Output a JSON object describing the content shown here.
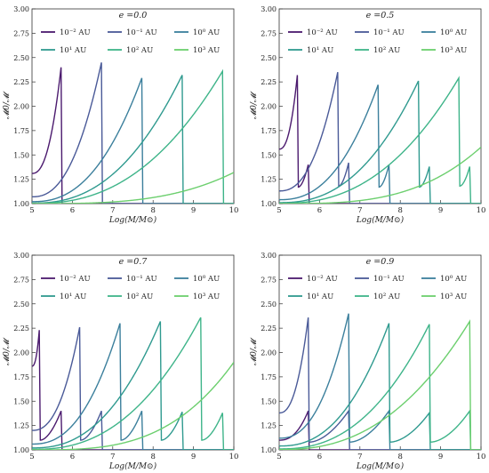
{
  "chart_data": [
    {
      "type": "line",
      "panel": "top-left",
      "title": "e =0.0",
      "xlabel": "Log(M/M⊙)",
      "ylabel": "𝓜0/𝓜",
      "xlim": [
        5,
        10
      ],
      "ylim": [
        1.0,
        3.0
      ],
      "xticks": [
        "5",
        "6",
        "7",
        "8",
        "9",
        "10"
      ],
      "yticks": [
        "1.00",
        "1.25",
        "1.50",
        "1.75",
        "2.00",
        "2.25",
        "2.50",
        "2.75",
        "3.00"
      ],
      "legend": "top-center",
      "series": [
        {
          "name": "10⁻² AU",
          "color": "#4b1a6e",
          "peaks": [
            [
              5.72,
              2.4
            ]
          ],
          "dips": [],
          "start": 1.31
        },
        {
          "name": "10⁻¹ AU",
          "color": "#4a5a98",
          "peaks": [
            [
              6.72,
              2.45
            ]
          ],
          "dips": [],
          "start": 1.07
        },
        {
          "name": "10⁰ AU",
          "color": "#3b7f9c",
          "peaks": [
            [
              7.72,
              2.29
            ]
          ],
          "dips": [],
          "start": 1.02
        },
        {
          "name": "10¹ AU",
          "color": "#2f9a8f",
          "peaks": [
            [
              8.72,
              2.32
            ]
          ],
          "dips": [],
          "start": 1.005
        },
        {
          "name": "10² AU",
          "color": "#3eb489",
          "peaks": [
            [
              9.72,
              2.36
            ]
          ],
          "dips": [],
          "start": 1.001
        },
        {
          "name": "10³ AU",
          "color": "#6ccf6e",
          "peaks": [],
          "dips": [],
          "start": 1.0,
          "end": 1.32
        }
      ]
    },
    {
      "type": "line",
      "panel": "top-right",
      "title": "e =0.5",
      "xlabel": "Log(M/M⊙)",
      "ylabel": "𝓜0/𝓜",
      "xlim": [
        5,
        10
      ],
      "ylim": [
        1.0,
        3.0
      ],
      "xticks": [
        "5",
        "6",
        "7",
        "8",
        "9",
        "10"
      ],
      "yticks": [
        "1.00",
        "1.25",
        "1.50",
        "1.75",
        "2.00",
        "2.25",
        "2.50",
        "2.75",
        "3.00"
      ],
      "legend": "top-center",
      "series": [
        {
          "name": "10⁻² AU",
          "color": "#4b1a6e",
          "peaks": [
            [
              5.45,
              2.32
            ],
            [
              5.72,
              1.4
            ]
          ],
          "dips": [
            1.17
          ],
          "start": 1.56
        },
        {
          "name": "10⁻¹ AU",
          "color": "#4a5a98",
          "peaks": [
            [
              6.45,
              2.35
            ],
            [
              6.72,
              1.42
            ]
          ],
          "dips": [
            1.18
          ],
          "start": 1.13
        },
        {
          "name": "10⁰ AU",
          "color": "#3b7f9c",
          "peaks": [
            [
              7.45,
              2.22
            ],
            [
              7.72,
              1.4
            ]
          ],
          "dips": [
            1.17
          ],
          "start": 1.04
        },
        {
          "name": "10¹ AU",
          "color": "#2f9a8f",
          "peaks": [
            [
              8.45,
              2.26
            ],
            [
              8.72,
              1.38
            ]
          ],
          "dips": [
            1.17
          ],
          "start": 1.01
        },
        {
          "name": "10² AU",
          "color": "#3eb489",
          "peaks": [
            [
              9.45,
              2.29
            ],
            [
              9.72,
              1.38
            ]
          ],
          "dips": [
            1.18
          ],
          "start": 1.002
        },
        {
          "name": "10³ AU",
          "color": "#6ccf6e",
          "peaks": [],
          "dips": [],
          "start": 1.0,
          "end": 1.58
        }
      ]
    },
    {
      "type": "line",
      "panel": "bottom-left",
      "title": "e =0.7",
      "xlabel": "Log(M/M⊙)",
      "ylabel": "𝓜0/𝓜",
      "xlim": [
        5,
        10
      ],
      "ylim": [
        1.0,
        3.0
      ],
      "xticks": [
        "5",
        "6",
        "7",
        "8",
        "9",
        "10"
      ],
      "yticks": [
        "1.00",
        "1.25",
        "1.50",
        "1.75",
        "2.00",
        "2.25",
        "2.50",
        "2.75",
        "3.00"
      ],
      "legend": "top-center",
      "series": [
        {
          "name": "10⁻² AU",
          "color": "#4b1a6e",
          "peaks": [
            [
              5.18,
              2.23
            ],
            [
              5.72,
              1.4
            ]
          ],
          "dips": [
            1.1
          ],
          "start": 1.86
        },
        {
          "name": "10⁻¹ AU",
          "color": "#4a5a98",
          "peaks": [
            [
              6.18,
              2.26
            ],
            [
              6.72,
              1.4
            ]
          ],
          "dips": [
            1.1
          ],
          "start": 1.2
        },
        {
          "name": "10⁰ AU",
          "color": "#3b7f9c",
          "peaks": [
            [
              7.18,
              2.3
            ],
            [
              7.72,
              1.4
            ]
          ],
          "dips": [
            1.1
          ],
          "start": 1.06
        },
        {
          "name": "10¹ AU",
          "color": "#2f9a8f",
          "peaks": [
            [
              8.18,
              2.32
            ],
            [
              8.72,
              1.39
            ]
          ],
          "dips": [
            1.1
          ],
          "start": 1.02
        },
        {
          "name": "10² AU",
          "color": "#3eb489",
          "peaks": [
            [
              9.18,
              2.36
            ],
            [
              9.72,
              1.38
            ]
          ],
          "dips": [
            1.1
          ],
          "start": 1.005
        },
        {
          "name": "10³ AU",
          "color": "#6ccf6e",
          "peaks": [],
          "dips": [],
          "start": 1.0,
          "end": 1.9
        }
      ]
    },
    {
      "type": "line",
      "panel": "bottom-right",
      "title": "e =0.9",
      "xlabel": "Log(M/M⊙)",
      "ylabel": "𝓜0/𝓜",
      "xlim": [
        5,
        10
      ],
      "ylim": [
        1.0,
        3.0
      ],
      "xticks": [
        "5",
        "6",
        "7",
        "8",
        "9",
        "10"
      ],
      "yticks": [
        "1.00",
        "1.25",
        "1.50",
        "1.75",
        "2.00",
        "2.25",
        "2.50",
        "2.75",
        "3.00"
      ],
      "legend": "top-center",
      "series": [
        {
          "name": "10⁻² AU",
          "color": "#4b1a6e",
          "peaks": [
            [
              5.72,
              1.4
            ]
          ],
          "dips": [],
          "start": 1.1
        },
        {
          "name": "10⁻¹ AU",
          "color": "#4a5a98",
          "peaks": [
            [
              5.72,
              2.36
            ],
            [
              6.72,
              1.4
            ]
          ],
          "dips": [
            1.08
          ],
          "start": 1.38
        },
        {
          "name": "10⁰ AU",
          "color": "#3b7f9c",
          "peaks": [
            [
              6.72,
              2.4
            ],
            [
              7.72,
              1.4
            ]
          ],
          "dips": [
            1.08
          ],
          "start": 1.12
        },
        {
          "name": "10¹ AU",
          "color": "#2f9a8f",
          "peaks": [
            [
              7.72,
              2.3
            ],
            [
              8.72,
              1.38
            ]
          ],
          "dips": [
            1.08
          ],
          "start": 1.04
        },
        {
          "name": "10² AU",
          "color": "#3eb489",
          "peaks": [
            [
              8.72,
              2.29
            ],
            [
              9.72,
              1.4
            ]
          ],
          "dips": [
            1.08
          ],
          "start": 1.01
        },
        {
          "name": "10³ AU",
          "color": "#6ccf6e",
          "peaks": [
            [
              9.72,
              2.32
            ]
          ],
          "dips": [],
          "start": 1.003,
          "end": 1.07
        }
      ]
    }
  ]
}
